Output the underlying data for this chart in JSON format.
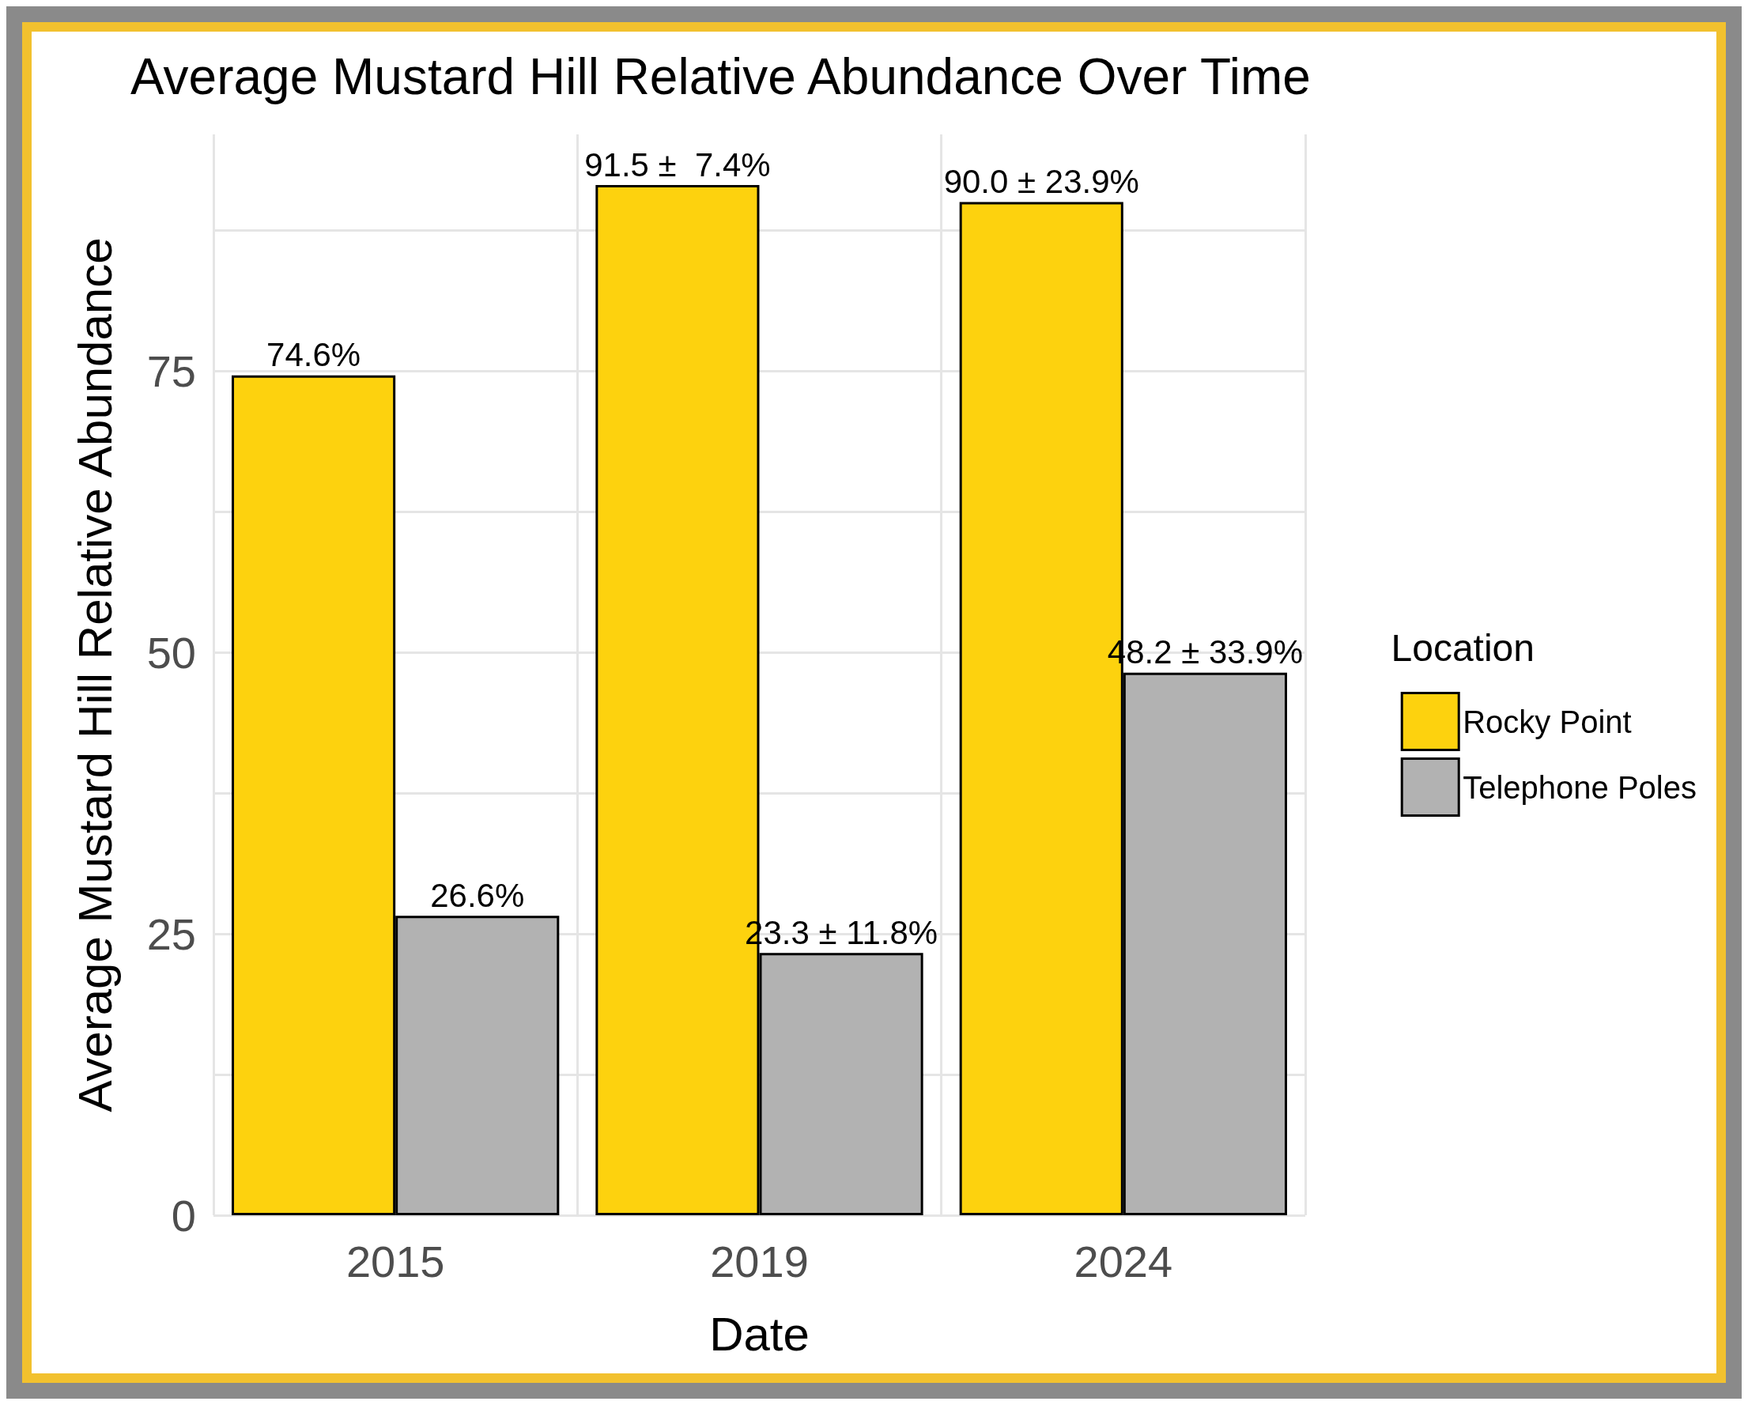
{
  "chart_data": {
    "type": "bar",
    "title": "Average Mustard Hill Relative Abundance Over Time",
    "xlabel": "Date",
    "ylabel": "Average Mustard Hill Relative Abundance",
    "legend_title": "Location",
    "categories": [
      "2015",
      "2019",
      "2024"
    ],
    "series": [
      {
        "name": "Rocky Point",
        "color": "#fdd20e",
        "values": [
          74.6,
          91.5,
          90.0
        ],
        "value_labels": [
          "74.6%",
          "91.5 ±  7.4%",
          "90.0 ± 23.9%"
        ]
      },
      {
        "name": "Telephone Poles",
        "color": "#b2b2b2",
        "values": [
          26.6,
          23.3,
          48.2
        ],
        "value_labels": [
          "26.6%",
          "23.3 ± 11.8%",
          "48.2 ± 33.9%"
        ]
      }
    ],
    "ylim": [
      0,
      96
    ],
    "yticks": [
      0,
      {
        "value": 12.5,
        "label": null
      },
      25,
      {
        "value": 37.5,
        "label": null
      },
      50,
      {
        "value": 62.5,
        "label": null
      },
      75,
      {
        "value": 87.5,
        "label": null
      }
    ],
    "grid": true,
    "legend": "right"
  }
}
